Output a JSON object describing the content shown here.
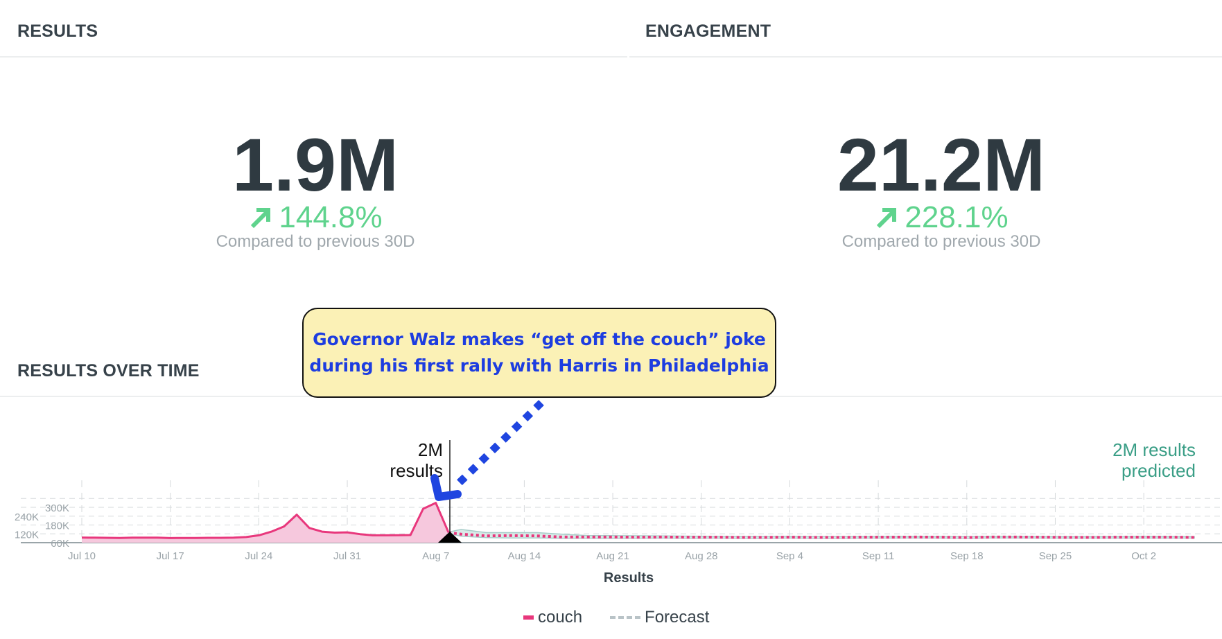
{
  "results": {
    "title": "RESULTS",
    "value": "1.9M",
    "change": "144.8%",
    "compare": "Compared to previous 30D",
    "trend_icon": "arrow-up-right-icon"
  },
  "engagement": {
    "title": "ENGAGEMENT",
    "value": "21.2M",
    "change": "228.1%",
    "compare": "Compared to previous 30D",
    "trend_icon": "arrow-up-right-icon"
  },
  "over_time_title": "RESULTS OVER TIME",
  "callout": {
    "line1": "Governor Walz makes “get off the couch” joke",
    "line2": "during his first rally with Harris in Philadelphia"
  },
  "colors": {
    "couch": "#e8377c",
    "couch_fill": "#f6c8dd",
    "forecast_band": "#d9eae8",
    "forecast_edge": "#a8cdc9",
    "positive": "#5fd38d",
    "predicted": "#3a9e86",
    "annotation_arrow": "#1f45e0",
    "callout_bg": "#fbf1b6"
  },
  "chart_data": {
    "type": "line",
    "xlabel": "Results",
    "ylabel": "",
    "x_ticks": [
      "Jul 10",
      "Jul 17",
      "Jul 24",
      "Jul 31",
      "Aug 7",
      "Aug 14",
      "Aug 21",
      "Aug 28",
      "Sep 4",
      "Sep 11",
      "Sep 18",
      "Sep 25",
      "Oct 2"
    ],
    "y_ticks": [
      "60K",
      "120K",
      "180K",
      "240K",
      "300K"
    ],
    "ylim": [
      60000,
      360000
    ],
    "grid": true,
    "legend_position": "bottom",
    "legend": [
      "couch",
      "Forecast"
    ],
    "marker": {
      "date": "Aug 8",
      "label_line1": "2M",
      "label_line2": "results"
    },
    "prediction": {
      "line1": "2M results",
      "line2": "predicted"
    },
    "series": [
      {
        "name": "couch",
        "style": "solid-area",
        "points": [
          [
            "Jul 10",
            95000
          ],
          [
            "Jul 11",
            94000
          ],
          [
            "Jul 12",
            93000
          ],
          [
            "Jul 13",
            92000
          ],
          [
            "Jul 14",
            94000
          ],
          [
            "Jul 15",
            94000
          ],
          [
            "Jul 16",
            94000
          ],
          [
            "Jul 17",
            91000
          ],
          [
            "Jul 18",
            92000
          ],
          [
            "Jul 19",
            92000
          ],
          [
            "Jul 20",
            93000
          ],
          [
            "Jul 21",
            93000
          ],
          [
            "Jul 22",
            94000
          ],
          [
            "Jul 23",
            98000
          ],
          [
            "Jul 24",
            110000
          ],
          [
            "Jul 25",
            135000
          ],
          [
            "Jul 26",
            170000
          ],
          [
            "Jul 27",
            250000
          ],
          [
            "Jul 28",
            160000
          ],
          [
            "Jul 29",
            135000
          ],
          [
            "Jul 30",
            128000
          ],
          [
            "Jul 31",
            130000
          ],
          [
            "Aug 1",
            118000
          ],
          [
            "Aug 2",
            110000
          ],
          [
            "Aug 3",
            110000
          ],
          [
            "Aug 4",
            111000
          ],
          [
            "Aug 5",
            112000
          ],
          [
            "Aug 6",
            290000
          ],
          [
            "Aug 7",
            330000
          ],
          [
            "Aug 8",
            130000
          ]
        ]
      },
      {
        "name": "Forecast",
        "style": "dotted-band",
        "points": [
          [
            "Aug 8",
            128000,
            120000,
            132000
          ],
          [
            "Aug 9",
            118000,
            104000,
            150000
          ],
          [
            "Aug 11",
            106000,
            94000,
            128000
          ],
          [
            "Aug 13",
            108000,
            92000,
            128000
          ],
          [
            "Aug 15",
            106000,
            92000,
            128000
          ],
          [
            "Aug 17",
            98000,
            90000,
            118000
          ],
          [
            "Aug 19",
            98000,
            90000,
            108000
          ],
          [
            "Aug 21",
            98000,
            90000,
            108000
          ],
          [
            "Aug 23",
            97000,
            90000,
            107000
          ],
          [
            "Aug 25",
            98000,
            91000,
            106000
          ],
          [
            "Aug 27",
            97000,
            90000,
            104000
          ],
          [
            "Aug 29",
            97000,
            91000,
            103000
          ],
          [
            "Aug 31",
            96000,
            90000,
            102000
          ],
          [
            "Sep 2",
            96000,
            90000,
            102000
          ],
          [
            "Sep 4",
            97000,
            91000,
            103000
          ],
          [
            "Sep 6",
            96000,
            90000,
            101000
          ],
          [
            "Sep 8",
            96000,
            90000,
            101000
          ],
          [
            "Sep 10",
            97000,
            91000,
            102000
          ],
          [
            "Sep 12",
            97000,
            91000,
            103000
          ],
          [
            "Sep 14",
            98000,
            92000,
            103000
          ],
          [
            "Sep 16",
            97000,
            91000,
            102000
          ],
          [
            "Sep 18",
            95000,
            90000,
            101000
          ],
          [
            "Sep 20",
            98000,
            92000,
            103000
          ],
          [
            "Sep 22",
            98000,
            92000,
            103000
          ],
          [
            "Sep 24",
            97000,
            91000,
            102000
          ],
          [
            "Sep 26",
            96000,
            91000,
            101000
          ],
          [
            "Sep 28",
            96000,
            91000,
            101000
          ],
          [
            "Sep 30",
            97000,
            91000,
            102000
          ],
          [
            "Oct 2",
            97000,
            91000,
            103000
          ],
          [
            "Oct 4",
            97000,
            91000,
            102000
          ],
          [
            "Oct 6",
            96000,
            91000,
            101000
          ]
        ]
      }
    ]
  }
}
